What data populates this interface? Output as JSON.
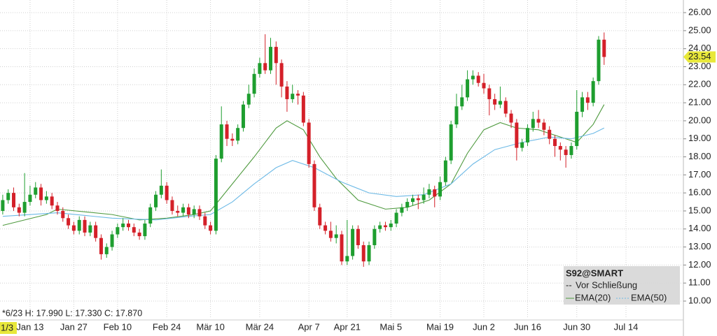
{
  "chart_data": {
    "type": "candlestick",
    "up_color": "#1e9e2f",
    "down_color": "#d42029",
    "grid": true,
    "ylim": [
      9.07,
      26.7
    ],
    "yticks": [
      {
        "value": 10,
        "label": "10.00"
      },
      {
        "value": 11,
        "label": "11.00"
      },
      {
        "value": 12,
        "label": "12.00"
      },
      {
        "value": 13,
        "label": "13.00"
      },
      {
        "value": 14,
        "label": "14.00"
      },
      {
        "value": 15,
        "label": "15.00"
      },
      {
        "value": 16,
        "label": "16.00"
      },
      {
        "value": 17,
        "label": "17.00"
      },
      {
        "value": 18,
        "label": "18.00"
      },
      {
        "value": 19,
        "label": "19.00"
      },
      {
        "value": 20,
        "label": "20.00"
      },
      {
        "value": 21,
        "label": "21.00"
      },
      {
        "value": 22,
        "label": "22.00"
      },
      {
        "value": 23,
        "label": "23.00"
      },
      {
        "value": 24,
        "label": "24.00"
      },
      {
        "value": 25,
        "label": "25.00"
      },
      {
        "value": 26,
        "label": "26.00"
      }
    ],
    "xlim": [
      -0.5,
      124.5
    ],
    "xticks": [
      {
        "value": 5,
        "label": "Jan 13"
      },
      {
        "value": 13,
        "label": "Jan 27"
      },
      {
        "value": 21,
        "label": "Feb 10"
      },
      {
        "value": 30,
        "label": "Feb 24"
      },
      {
        "value": 38,
        "label": "Mär 10"
      },
      {
        "value": 47,
        "label": "Mär 24"
      },
      {
        "value": 56,
        "label": "Apr 7"
      },
      {
        "value": 63,
        "label": "Apr 21"
      },
      {
        "value": 71,
        "label": "Mai 5"
      },
      {
        "value": 80,
        "label": "Mai 19"
      },
      {
        "value": 88,
        "label": "Jun 2"
      },
      {
        "value": 96,
        "label": "Jun 16"
      },
      {
        "value": 105,
        "label": "Jun 30"
      },
      {
        "value": 114,
        "label": "Jul 14"
      }
    ],
    "cursor_label": "1/3",
    "info": "*6/23 H: 17.990 L: 17.330 C: 17.870",
    "last_price": 23.54,
    "legend_extra": "Vor Schließung",
    "series": [
      {
        "name": "S92@SMART",
        "open": [
          15.0,
          15.6,
          16.0,
          15.2,
          14.9,
          15.5,
          15.9,
          16.3,
          15.6,
          15.8,
          15.3,
          15.0,
          14.6,
          14.2,
          13.9,
          14.5,
          13.8,
          14.2,
          13.5,
          12.6,
          13.0,
          13.7,
          14.1,
          14.3,
          14.1,
          13.8,
          13.6,
          14.3,
          15.2,
          15.9,
          16.4,
          15.6,
          15.0,
          14.9,
          15.2,
          14.8,
          15.1,
          14.7,
          14.2,
          13.9,
          17.9,
          19.8,
          19.0,
          18.9,
          19.6,
          20.9,
          21.5,
          22.6,
          23.2,
          22.8,
          24.1,
          23.2,
          21.9,
          21.2,
          21.5,
          21.4,
          19.9,
          17.6,
          15.2,
          14.2,
          13.9,
          13.5,
          13.7,
          12.2,
          12.5,
          14.0,
          13.1,
          12.2,
          13.1,
          14.0,
          14.2,
          14.1,
          14.3,
          14.9,
          15.2,
          15.5,
          15.7,
          15.6,
          15.9,
          16.2,
          15.8,
          16.6,
          17.8,
          19.8,
          20.8,
          21.3,
          22.3,
          22.5,
          22.1,
          21.8,
          21.2,
          20.9,
          21.1,
          20.4,
          19.9,
          18.5,
          18.8,
          19.6,
          20.1,
          19.9,
          19.5,
          19.0,
          18.6,
          18.4,
          18.1,
          18.6,
          20.5,
          21.3,
          21.0,
          22.2,
          24.5
        ],
        "high": [
          15.9,
          16.2,
          16.3,
          15.4,
          17.1,
          16.4,
          16.6,
          16.5,
          16.1,
          16.0,
          15.5,
          15.2,
          14.8,
          14.4,
          14.7,
          14.7,
          14.4,
          14.4,
          13.7,
          13.2,
          13.9,
          14.3,
          14.6,
          14.5,
          14.3,
          14.0,
          14.5,
          15.4,
          16.1,
          17.3,
          16.6,
          15.8,
          15.3,
          15.4,
          15.4,
          15.3,
          15.3,
          14.9,
          14.4,
          18.1,
          20.8,
          20.0,
          19.3,
          19.8,
          21.1,
          22.0,
          22.9,
          23.5,
          24.8,
          24.6,
          24.4,
          23.4,
          22.2,
          22.0,
          21.7,
          21.6,
          20.1,
          17.8,
          15.4,
          14.4,
          14.4,
          14.2,
          13.9,
          14.5,
          14.2,
          14.2,
          13.3,
          13.3,
          14.2,
          14.4,
          14.4,
          14.5,
          15.1,
          15.4,
          15.7,
          15.9,
          15.9,
          16.3,
          16.5,
          16.4,
          16.9,
          18.0,
          20.0,
          21.5,
          22.0,
          22.8,
          22.8,
          22.7,
          22.6,
          22.0,
          21.5,
          21.9,
          21.3,
          20.6,
          20.1,
          19.0,
          19.8,
          20.5,
          20.6,
          20.1,
          19.7,
          19.2,
          18.8,
          18.6,
          18.8,
          21.7,
          21.6,
          21.6,
          22.4,
          24.7,
          24.9
        ],
        "low": [
          14.8,
          15.4,
          15.0,
          14.7,
          14.7,
          15.3,
          15.7,
          15.3,
          15.4,
          15.1,
          14.8,
          14.4,
          14.0,
          13.7,
          13.7,
          13.6,
          13.6,
          13.3,
          12.3,
          12.4,
          12.8,
          13.5,
          13.9,
          13.9,
          13.6,
          13.4,
          13.4,
          14.1,
          15.0,
          15.7,
          15.4,
          14.8,
          14.7,
          14.7,
          14.6,
          14.6,
          14.5,
          14.0,
          13.7,
          13.7,
          17.7,
          18.6,
          18.6,
          18.7,
          19.4,
          20.7,
          21.3,
          22.4,
          22.6,
          22.6,
          22.0,
          21.3,
          20.5,
          21.0,
          20.9,
          19.7,
          17.4,
          15.0,
          14.0,
          13.7,
          13.3,
          13.2,
          12.0,
          12.0,
          12.3,
          12.9,
          11.9,
          12.0,
          12.9,
          13.8,
          13.9,
          13.9,
          14.1,
          14.7,
          15.0,
          15.3,
          15.1,
          15.4,
          15.7,
          15.2,
          15.6,
          16.4,
          17.6,
          19.6,
          20.6,
          21.1,
          22.0,
          21.9,
          21.5,
          20.3,
          20.6,
          20.7,
          20.2,
          19.6,
          17.8,
          18.3,
          18.6,
          19.4,
          19.6,
          19.2,
          18.7,
          18.0,
          17.8,
          17.4,
          17.9,
          18.4,
          20.2,
          20.6,
          20.8,
          22.0,
          23.1
        ],
        "close": [
          15.6,
          16.0,
          15.2,
          14.9,
          15.5,
          15.9,
          16.3,
          15.6,
          15.8,
          15.3,
          15.0,
          14.6,
          14.2,
          13.9,
          14.5,
          13.8,
          14.2,
          13.5,
          12.6,
          13.0,
          13.7,
          14.1,
          14.3,
          14.1,
          13.8,
          13.6,
          14.3,
          15.2,
          15.9,
          16.4,
          15.6,
          15.0,
          14.9,
          15.2,
          14.8,
          15.1,
          14.7,
          14.2,
          13.9,
          17.9,
          19.8,
          19.0,
          18.9,
          19.6,
          20.9,
          21.5,
          22.6,
          23.2,
          22.8,
          24.1,
          23.2,
          21.9,
          21.2,
          21.5,
          21.4,
          19.9,
          17.6,
          15.2,
          14.2,
          13.9,
          13.5,
          13.7,
          12.2,
          12.5,
          14.0,
          13.1,
          12.2,
          13.1,
          14.0,
          14.2,
          14.1,
          14.3,
          14.9,
          15.2,
          15.5,
          15.7,
          15.6,
          15.9,
          16.2,
          15.8,
          16.6,
          17.8,
          19.8,
          20.8,
          21.3,
          22.3,
          22.5,
          22.1,
          21.8,
          21.2,
          20.9,
          21.1,
          20.4,
          19.9,
          18.5,
          18.8,
          19.6,
          20.1,
          19.9,
          19.5,
          19.0,
          18.6,
          18.4,
          18.1,
          18.6,
          20.5,
          21.3,
          21.0,
          22.2,
          24.5,
          23.54
        ]
      }
    ],
    "overlays": [
      {
        "name": "EMA(20)",
        "color": "#4f9a3f",
        "x": [
          0,
          8,
          10,
          20,
          25,
          30,
          35,
          38,
          42,
          46,
          50,
          52,
          55,
          58,
          61,
          65,
          70,
          74,
          78,
          82,
          85,
          88,
          91,
          94,
          98,
          102,
          105,
          108,
          110
        ],
        "values": [
          14.2,
          14.8,
          15.1,
          14.8,
          14.5,
          14.6,
          14.8,
          15.0,
          16.5,
          18.0,
          19.6,
          20.0,
          19.5,
          18.0,
          16.8,
          15.6,
          15.1,
          15.2,
          15.6,
          16.5,
          18.2,
          19.5,
          19.9,
          19.6,
          19.5,
          19.1,
          18.8,
          19.8,
          20.9
        ]
      },
      {
        "name": "EMA(50)",
        "color": "#6cb9e6",
        "x": [
          0,
          10,
          20,
          28,
          34,
          38,
          42,
          46,
          50,
          53,
          57,
          62,
          67,
          72,
          77,
          82,
          86,
          90,
          95,
          100,
          104,
          108,
          110
        ],
        "values": [
          14.7,
          14.9,
          14.6,
          14.5,
          14.7,
          14.8,
          15.5,
          16.5,
          17.4,
          17.8,
          17.4,
          16.6,
          16.0,
          15.8,
          15.9,
          16.5,
          17.6,
          18.4,
          18.8,
          19.1,
          19.0,
          19.3,
          19.6
        ]
      }
    ]
  }
}
